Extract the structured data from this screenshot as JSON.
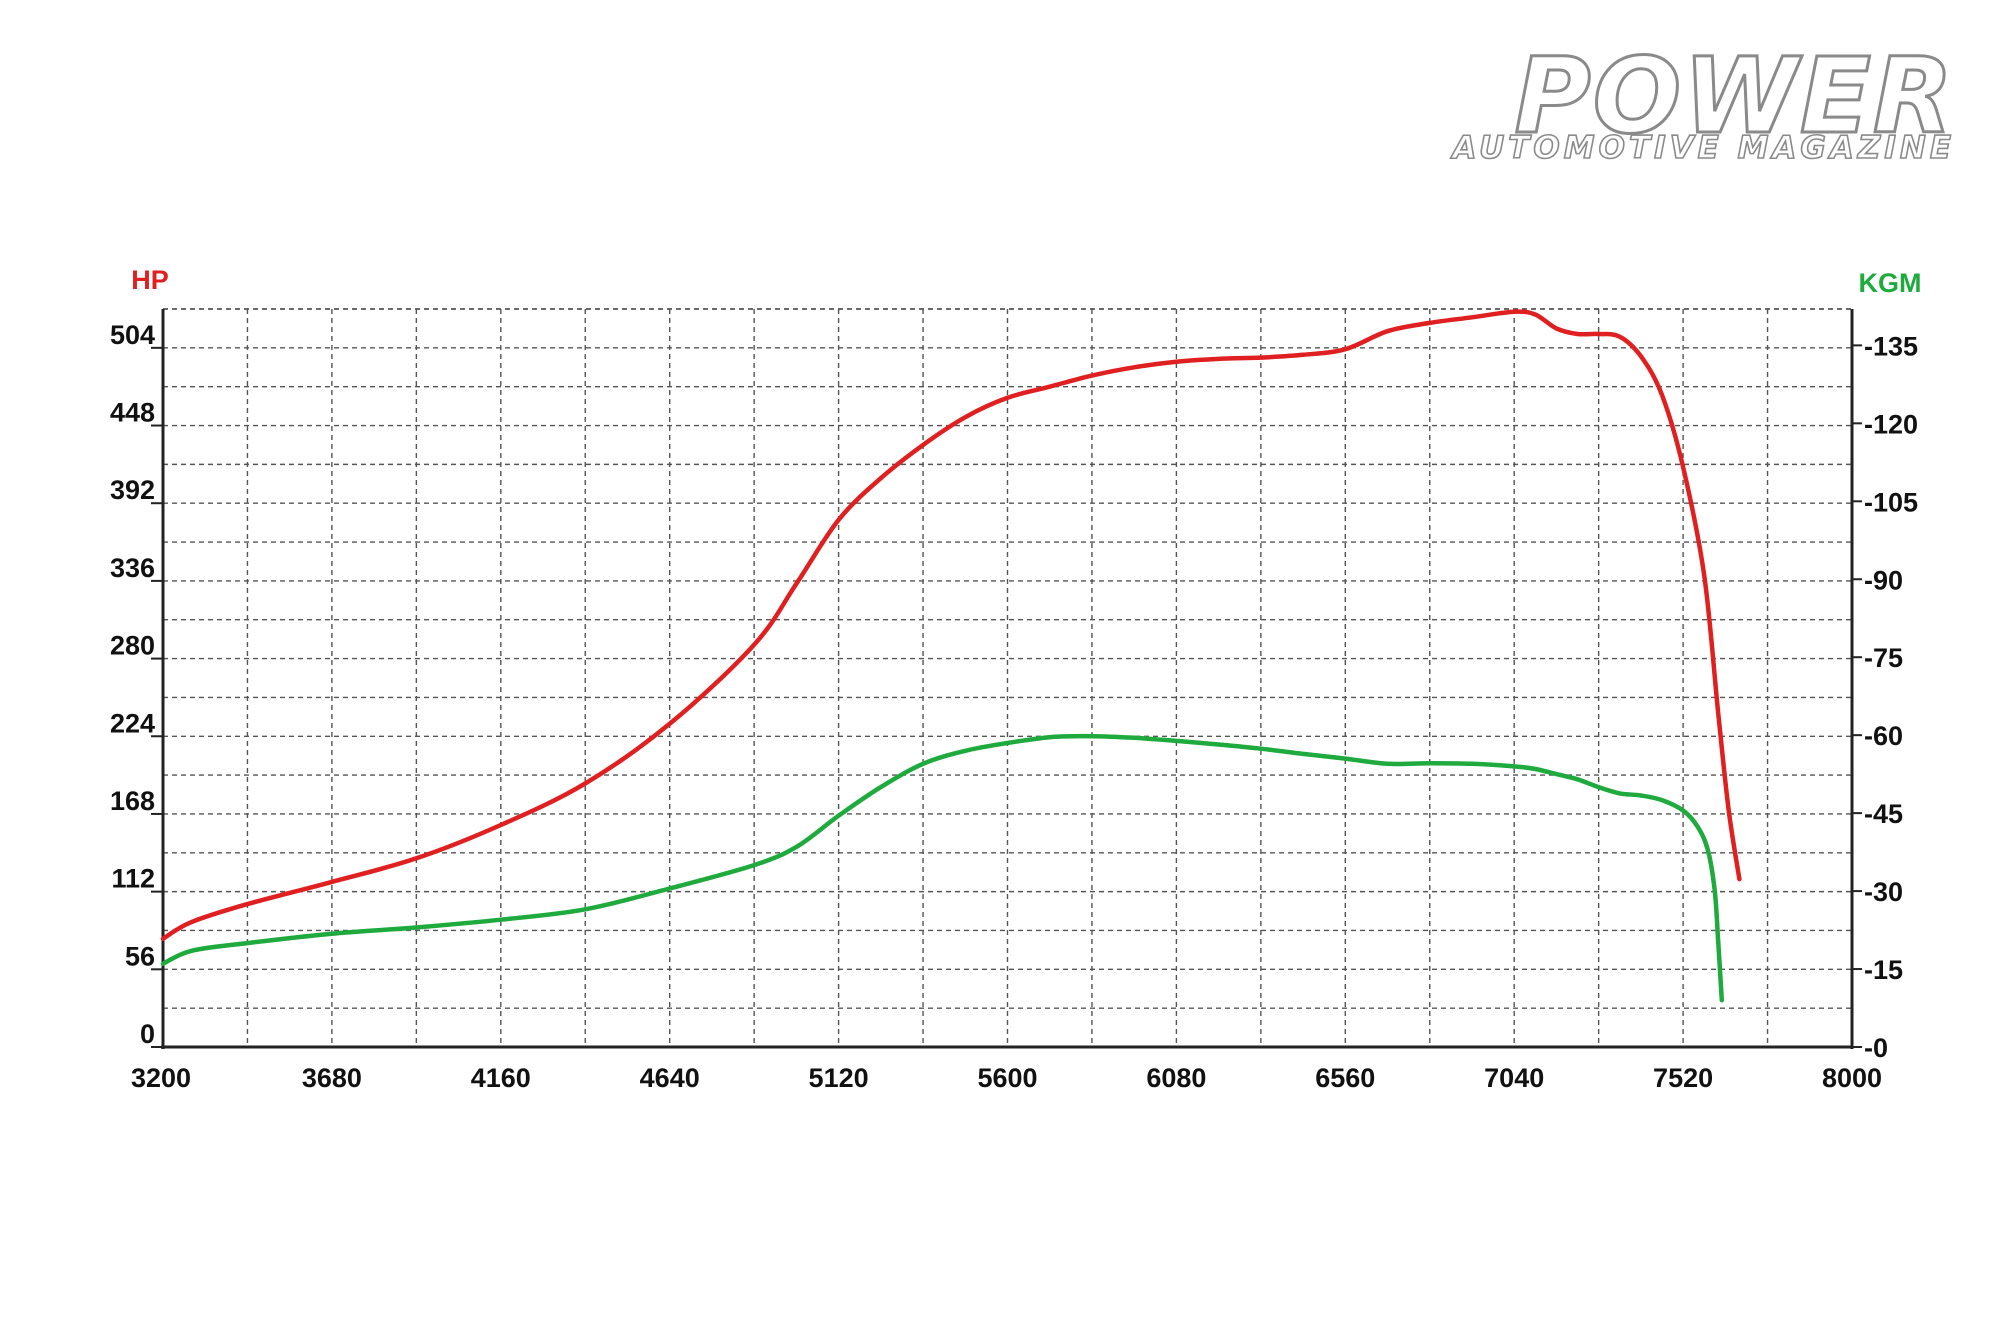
{
  "brand": {
    "title": "POWER",
    "subtitle": "AUTOMOTIVE MAGAZINE"
  },
  "colors": {
    "hp": "#e02020",
    "torque": "#1faa3e",
    "grid": "#555555",
    "axis": "#222222"
  },
  "chart_data": {
    "type": "line",
    "title": "",
    "xlabel": "",
    "ylabel_left": "HP",
    "ylabel_right": "KGM",
    "grid": true,
    "xlim": [
      3200,
      8000
    ],
    "ylim_left": [
      0,
      532
    ],
    "ylim_right": [
      0,
      142
    ],
    "x_ticks": [
      "3200",
      "3680",
      "4160",
      "4640",
      "5120",
      "5600",
      "6080",
      "6560",
      "7040",
      "7520",
      "8000"
    ],
    "y_left_ticks": [
      "0",
      "56",
      "112",
      "168",
      "224",
      "280",
      "336",
      "392",
      "448",
      "504"
    ],
    "y_right_ticks": [
      "0",
      "15",
      "30",
      "45",
      "60",
      "75",
      "90",
      "105",
      "120",
      "135"
    ],
    "series": [
      {
        "name": "HP",
        "axis": "left",
        "x": [
          3200,
          3280,
          3440,
          3680,
          3920,
          4160,
          4400,
          4640,
          4880,
          5000,
          5120,
          5240,
          5360,
          5480,
          5600,
          5720,
          5840,
          5960,
          6080,
          6200,
          6320,
          6440,
          6560,
          6680,
          6800,
          6920,
          7040,
          7100,
          7160,
          7220,
          7280,
          7340,
          7400,
          7460,
          7520,
          7580,
          7620,
          7650,
          7680
        ],
        "y": [
          78,
          90,
          103,
          119,
          136,
          160,
          190,
          233,
          290,
          334,
          380,
          410,
          434,
          454,
          468,
          476,
          484,
          490,
          494,
          496,
          497,
          499,
          503,
          516,
          522,
          526,
          530,
          528,
          518,
          514,
          514,
          512,
          498,
          470,
          418,
          340,
          240,
          170,
          121
        ]
      },
      {
        "name": "KGM",
        "axis": "right",
        "x": [
          3200,
          3280,
          3440,
          3680,
          3920,
          4160,
          4400,
          4640,
          4880,
          5000,
          5120,
          5240,
          5360,
          5480,
          5600,
          5720,
          5840,
          5960,
          6080,
          6200,
          6320,
          6440,
          6560,
          6680,
          6800,
          6920,
          7040,
          7100,
          7160,
          7220,
          7280,
          7340,
          7400,
          7460,
          7520,
          7560,
          7590,
          7610,
          7620,
          7630
        ],
        "y": [
          16,
          18.5,
          20,
          21.8,
          23,
          24.5,
          26.5,
          30.5,
          35,
          38.5,
          44.5,
          50,
          54.5,
          57,
          58.5,
          59.6,
          59.8,
          59.5,
          58.9,
          58.2,
          57.4,
          56.4,
          55.5,
          54.5,
          54.6,
          54.5,
          54,
          53.5,
          52.5,
          51.5,
          50,
          48.8,
          48.4,
          47.5,
          45.5,
          42.5,
          38,
          30,
          20,
          9
        ]
      }
    ]
  }
}
